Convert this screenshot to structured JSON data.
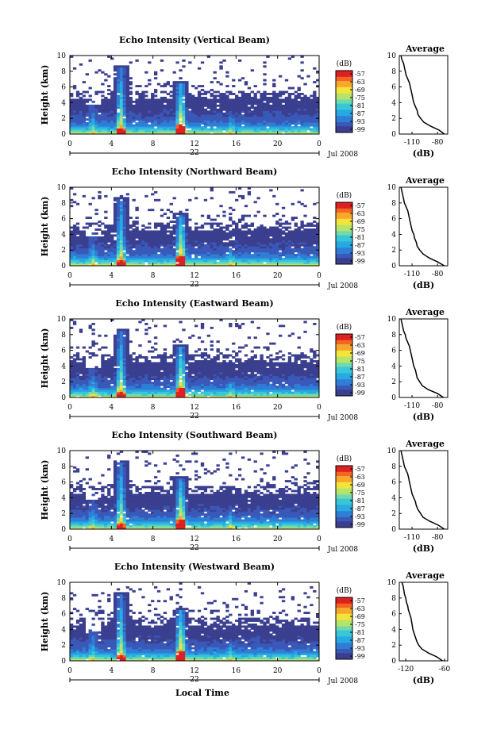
{
  "chart_data": [
    {
      "type": "heatmap",
      "title": "Echo Intensity (Vertical Beam)",
      "ylabel": "Height (km)",
      "x_ticks": [
        "0",
        "4",
        "8",
        "12",
        "16",
        "20",
        "0"
      ],
      "y_ticks": [
        "0",
        "2",
        "4",
        "6",
        "8",
        "10"
      ],
      "xlim": [
        0,
        24
      ],
      "ylim": [
        0,
        10
      ],
      "day_label": "22",
      "month_label": "Jul 2008",
      "colorbar": {
        "unit": "(dB)",
        "ticks": [
          "-57",
          "-63",
          "-69",
          "-75",
          "-81",
          "-87",
          "-93",
          "-99"
        ]
      },
      "profile": {
        "title": "Average",
        "xlabel": "(dB)",
        "x_ticks": [
          "-110",
          "-80"
        ],
        "xlim": [
          -125,
          -68
        ],
        "height": [
          0,
          0.5,
          1,
          1.5,
          2,
          2.5,
          3,
          3.5,
          4,
          4.5,
          5,
          5.5,
          6,
          6.5,
          7,
          7.5,
          8,
          8.5,
          9,
          9.5,
          10
        ],
        "db": [
          -72,
          -78,
          -88,
          -96,
          -100,
          -103,
          -104,
          -106,
          -108,
          -109,
          -110,
          -111,
          -112,
          -113,
          -115,
          -117,
          -118,
          -119,
          -120,
          -122,
          -123
        ]
      }
    },
    {
      "type": "heatmap",
      "title": "Echo Intensity (Northward Beam)",
      "ylabel": "Height (km)",
      "x_ticks": [
        "0",
        "4",
        "8",
        "12",
        "16",
        "20",
        "0"
      ],
      "y_ticks": [
        "0",
        "2",
        "4",
        "6",
        "8",
        "10"
      ],
      "xlim": [
        0,
        24
      ],
      "ylim": [
        0,
        10
      ],
      "day_label": "22",
      "month_label": "Jul 2008",
      "colorbar": {
        "unit": "(dB)",
        "ticks": [
          "-57",
          "-63",
          "-69",
          "-75",
          "-81",
          "-87",
          "-93",
          "-99"
        ]
      },
      "profile": {
        "title": "Average",
        "xlabel": "(dB)",
        "x_ticks": [
          "-110",
          "-80"
        ],
        "xlim": [
          -125,
          -68
        ],
        "height": [
          0,
          0.5,
          1,
          1.5,
          2,
          2.5,
          3,
          3.5,
          4,
          4.5,
          5,
          5.5,
          6,
          6.5,
          7,
          7.5,
          8,
          8.5,
          9,
          9.5,
          10
        ],
        "db": [
          -72,
          -80,
          -90,
          -97,
          -101,
          -104,
          -105,
          -107,
          -108,
          -110,
          -111,
          -112,
          -113,
          -114,
          -115,
          -117,
          -119,
          -120,
          -121,
          -122,
          -123
        ]
      }
    },
    {
      "type": "heatmap",
      "title": "Echo Intensity (Eastward Beam)",
      "ylabel": "Height (km)",
      "x_ticks": [
        "0",
        "4",
        "8",
        "12",
        "16",
        "20",
        "0"
      ],
      "y_ticks": [
        "0",
        "2",
        "4",
        "6",
        "8",
        "10"
      ],
      "xlim": [
        0,
        24
      ],
      "ylim": [
        0,
        10
      ],
      "day_label": "22",
      "month_label": "Jul 2008",
      "colorbar": {
        "unit": "(dB)",
        "ticks": [
          "-57",
          "-63",
          "-69",
          "-75",
          "-81",
          "-87",
          "-93",
          "-99"
        ]
      },
      "profile": {
        "title": "Average",
        "xlabel": "(dB)",
        "x_ticks": [
          "-110",
          "-80"
        ],
        "xlim": [
          -125,
          -68
        ],
        "height": [
          0,
          0.5,
          1,
          1.5,
          2,
          2.5,
          3,
          3.5,
          4,
          4.5,
          5,
          5.5,
          6,
          6.5,
          7,
          7.5,
          8,
          8.5,
          9,
          9.5,
          10
        ],
        "db": [
          -73,
          -80,
          -91,
          -98,
          -101,
          -104,
          -105,
          -106,
          -108,
          -109,
          -110,
          -111,
          -112,
          -113,
          -115,
          -117,
          -118,
          -120,
          -121,
          -122,
          -123
        ]
      }
    },
    {
      "type": "heatmap",
      "title": "Echo Intensity (Southward Beam)",
      "ylabel": "Height (km)",
      "x_ticks": [
        "0",
        "4",
        "8",
        "12",
        "16",
        "20",
        "0"
      ],
      "y_ticks": [
        "0",
        "2",
        "4",
        "6",
        "8",
        "10"
      ],
      "xlim": [
        0,
        24
      ],
      "ylim": [
        0,
        10
      ],
      "day_label": "22",
      "month_label": "Jul 2008",
      "colorbar": {
        "unit": "(dB)",
        "ticks": [
          "-57",
          "-63",
          "-69",
          "-75",
          "-81",
          "-87",
          "-93",
          "-99"
        ]
      },
      "profile": {
        "title": "Average",
        "xlabel": "(dB)",
        "x_ticks": [
          "-110",
          "-80"
        ],
        "xlim": [
          -125,
          -68
        ],
        "height": [
          0,
          0.5,
          1,
          1.5,
          2,
          2.5,
          3,
          3.5,
          4,
          4.5,
          5,
          5.5,
          6,
          6.5,
          7,
          7.5,
          8,
          8.5,
          9,
          9.5,
          10
        ],
        "db": [
          -72,
          -79,
          -89,
          -97,
          -100,
          -103,
          -105,
          -106,
          -108,
          -110,
          -111,
          -112,
          -113,
          -114,
          -115,
          -117,
          -119,
          -120,
          -121,
          -122,
          -123
        ]
      }
    },
    {
      "type": "heatmap",
      "title": "Echo Intensity (Westward Beam)",
      "ylabel": "Height (km)",
      "xlabel": "Local Time",
      "x_ticks": [
        "0",
        "4",
        "8",
        "12",
        "16",
        "20",
        "0"
      ],
      "y_ticks": [
        "0",
        "2",
        "4",
        "6",
        "8",
        "10"
      ],
      "xlim": [
        0,
        24
      ],
      "ylim": [
        0,
        10
      ],
      "day_label": "22",
      "month_label": "Jul 2008",
      "colorbar": {
        "unit": "(dB)",
        "ticks": [
          "-57",
          "-63",
          "-69",
          "-75",
          "-81",
          "-87",
          "-93",
          "-99"
        ]
      },
      "profile": {
        "title": "Average",
        "xlabel": "(dB)",
        "x_ticks": [
          "-120",
          "-60"
        ],
        "xlim": [
          -130,
          -55
        ],
        "height": [
          0,
          0.5,
          1,
          1.5,
          2,
          2.5,
          3,
          3.5,
          4,
          4.5,
          5,
          5.5,
          6,
          6.5,
          7,
          7.5,
          8,
          8.5,
          9,
          9.5,
          10
        ],
        "db": [
          -63,
          -72,
          -85,
          -95,
          -100,
          -103,
          -105,
          -107,
          -109,
          -110,
          -111,
          -112,
          -114,
          -116,
          -117,
          -119,
          -120,
          -122,
          -123,
          -124,
          -126
        ]
      }
    }
  ],
  "colors": {
    "colormap": [
      "#3b3f8f",
      "#3a58b8",
      "#2f7ed6",
      "#27a9e3",
      "#39c7d8",
      "#6fdab0",
      "#b6e36a",
      "#f3e43c",
      "#f8a72d",
      "#f26522",
      "#e02020"
    ]
  }
}
